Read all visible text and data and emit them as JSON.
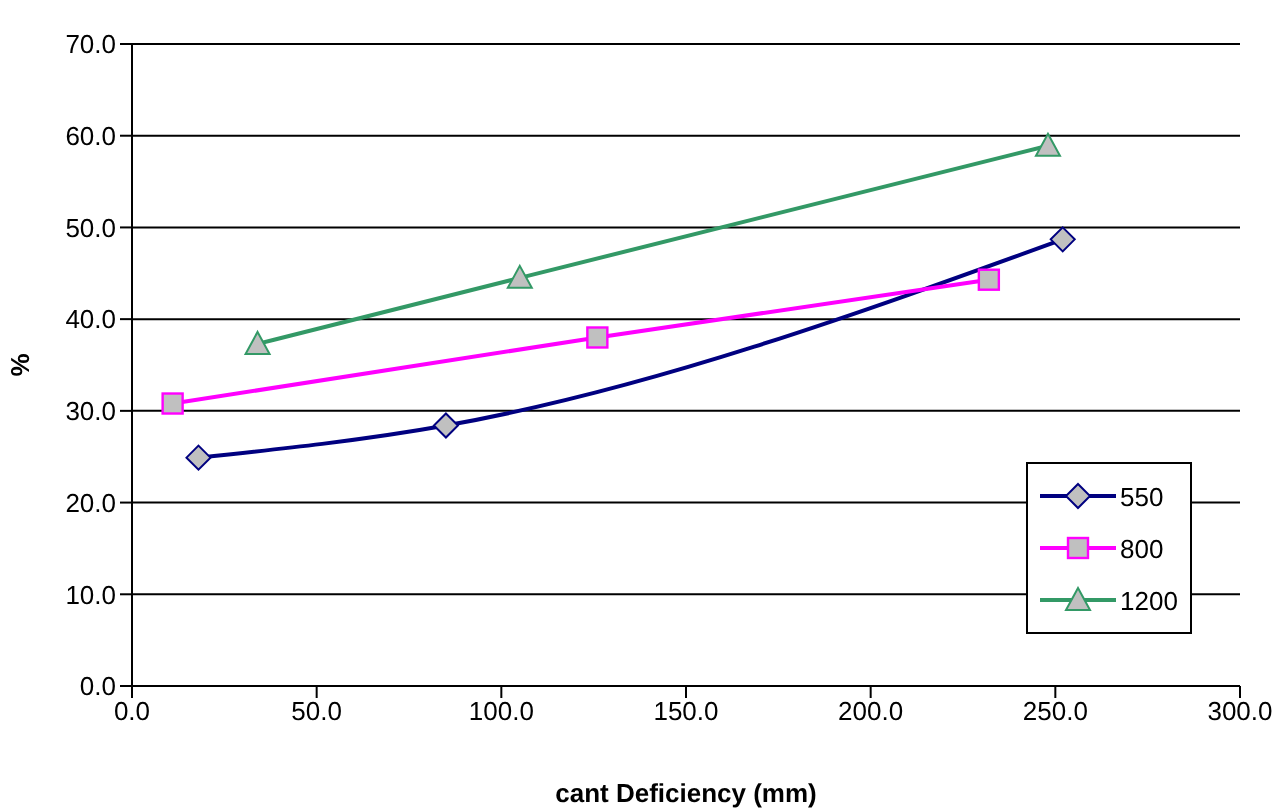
{
  "chart_data": {
    "type": "line",
    "xlabel": "cant Deficiency (mm)",
    "ylabel": "%",
    "xlim": [
      0,
      300
    ],
    "xticks": [
      {
        "value": 0,
        "label": "0.0"
      },
      {
        "value": 50,
        "label": "50.0"
      },
      {
        "value": 100,
        "label": "100.0"
      },
      {
        "value": 150,
        "label": "150.0"
      },
      {
        "value": 200,
        "label": "200.0"
      },
      {
        "value": 250,
        "label": "250.0"
      },
      {
        "value": 300,
        "label": "300.0"
      }
    ],
    "ylim": [
      0,
      70
    ],
    "yticks": [
      {
        "value": 0,
        "label": "0.0"
      },
      {
        "value": 10,
        "label": "10.0"
      },
      {
        "value": 20,
        "label": "20.0"
      },
      {
        "value": 30,
        "label": "30.0"
      },
      {
        "value": 40,
        "label": "40.0"
      },
      {
        "value": 50,
        "label": "50.0"
      },
      {
        "value": 60,
        "label": "60.0"
      },
      {
        "value": 70,
        "label": "70.0"
      }
    ],
    "grid": "y",
    "legend": "bottom right",
    "series": [
      {
        "name": "550",
        "color": "#000080",
        "marker": "diamond",
        "x": [
          18,
          85,
          252
        ],
        "values": [
          24.9,
          28.4,
          48.7
        ]
      },
      {
        "name": "800",
        "color": "#ff00ff",
        "marker": "square",
        "x": [
          11,
          126,
          232
        ],
        "values": [
          30.8,
          38.0,
          44.3
        ]
      },
      {
        "name": "1200",
        "color": "#339966",
        "marker": "triangle",
        "x": [
          34,
          105,
          248
        ],
        "values": [
          37.3,
          44.5,
          58.9
        ]
      }
    ]
  }
}
